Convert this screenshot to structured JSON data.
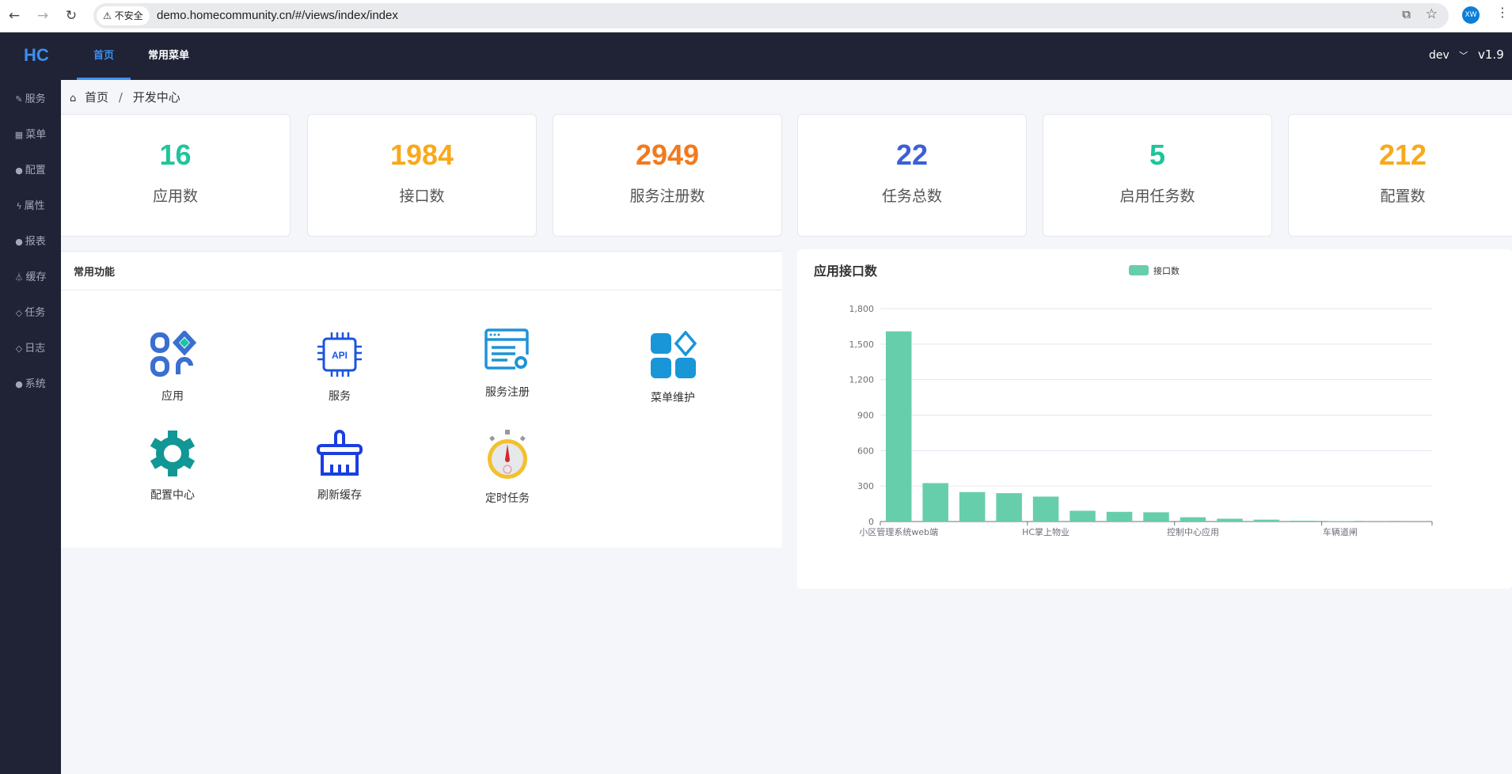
{
  "browser": {
    "url": "demo.homecommunity.cn/#/views/index/index",
    "security": "不安全",
    "profile": "XW"
  },
  "topnav": {
    "logo": "HC",
    "tabs": [
      {
        "label": "首页",
        "active": true
      },
      {
        "label": "常用菜单"
      }
    ],
    "user": "dev",
    "version": "v1.9",
    "accent": "#3d8ff0"
  },
  "sidebar": {
    "items": [
      {
        "label": "服务",
        "icon": "edit-icon"
      },
      {
        "label": "菜单",
        "icon": "grid-icon"
      },
      {
        "label": "配置",
        "icon": "globe-icon"
      },
      {
        "label": "属性",
        "icon": "bolt-icon"
      },
      {
        "label": "报表",
        "icon": "globe-icon"
      },
      {
        "label": "缓存",
        "icon": "flask-icon"
      },
      {
        "label": "任务",
        "icon": "diamond-icon"
      },
      {
        "label": "日志",
        "icon": "diamond-icon"
      },
      {
        "label": "系统",
        "icon": "globe-icon"
      }
    ]
  },
  "breadcrumb": {
    "home": "首页",
    "sep": "/",
    "current": "开发中心"
  },
  "stats": [
    {
      "value": "16",
      "label": "应用数",
      "color": "#1ec59b"
    },
    {
      "value": "1984",
      "label": "接口数",
      "color": "#f8a91b"
    },
    {
      "value": "2949",
      "label": "服务注册数",
      "color": "#f27a1d"
    },
    {
      "value": "22",
      "label": "任务总数",
      "color": "#3c5fd8"
    },
    {
      "value": "5",
      "label": "启用任务数",
      "color": "#1ec59b"
    },
    {
      "value": "212",
      "label": "配置数",
      "color": "#f8a91b"
    }
  ],
  "functions": {
    "title": "常用功能",
    "items": [
      {
        "label": "应用",
        "icon": "apps-icon"
      },
      {
        "label": "服务",
        "icon": "api-chip-icon"
      },
      {
        "label": "服务注册",
        "icon": "window-gear-icon"
      },
      {
        "label": "菜单维护",
        "icon": "menu-blocks-icon"
      },
      {
        "label": "配置中心",
        "icon": "gear-icon"
      },
      {
        "label": "刷新缓存",
        "icon": "brush-icon"
      },
      {
        "label": "定时任务",
        "icon": "stopwatch-icon"
      }
    ]
  },
  "chart_data": {
    "type": "bar",
    "title": "应用接口数",
    "legend": [
      "接口数"
    ],
    "legend_position": "top-center",
    "color": "#67ceab",
    "categories": [
      "小区管理系统web端",
      "",
      "",
      "",
      "HC掌上物业",
      "",
      "",
      "",
      "控制中心应用",
      "",
      "",
      "",
      "车辆道闸",
      "",
      ""
    ],
    "series": [
      {
        "name": "接口数",
        "values": [
          1608,
          325,
          249,
          240,
          211,
          91,
          82,
          78,
          36,
          24,
          16,
          7,
          4,
          1,
          1
        ]
      }
    ],
    "yticks": [
      0,
      300,
      600,
      900,
      1200,
      1500,
      1800
    ],
    "ytick_labels": [
      "0",
      "300",
      "600",
      "900",
      "1,200",
      "1,500",
      "1,800"
    ],
    "ylim": [
      0,
      1800
    ],
    "grid": true
  }
}
